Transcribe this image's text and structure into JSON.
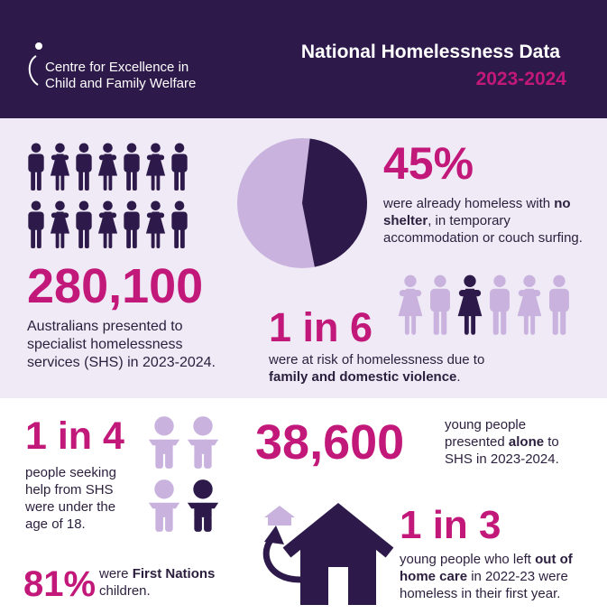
{
  "header": {
    "logo_text": [
      "Centre for Excellence in",
      "Child and Family Welfare"
    ],
    "title": "National Homelessness Data",
    "subtitle": "2023-2024"
  },
  "stats": [
    {
      "figure": "280,100",
      "description": [
        {
          "text": "Australians presented to specialist homelessness services (SHS) in 2023-2024."
        }
      ]
    },
    {
      "figure": {
        "value": 45,
        "label": "45%"
      },
      "description": [
        {
          "text": "were already homeless with "
        },
        {
          "text": "no shelter",
          "bold": true
        },
        {
          "text": ", in temporary accommodation or couch surfing."
        }
      ]
    },
    {
      "figure": "1 in 6",
      "description": [
        {
          "text": "were at risk of homelessness due to "
        },
        {
          "text": "family and domestic violence",
          "bold": true
        },
        {
          "text": "."
        }
      ]
    },
    {
      "figure": "1 in 4",
      "description": [
        {
          "text": "people seeking help from SHS were under the age of 18."
        }
      ]
    },
    {
      "figure": "81%",
      "description": [
        {
          "text": "were "
        },
        {
          "text": "First Nations",
          "bold": true
        },
        {
          "text": " children."
        }
      ]
    },
    {
      "figure": "38,600",
      "description": [
        {
          "text": "young people presented "
        },
        {
          "text": "alone",
          "bold": true
        },
        {
          "text": " to SHS in 2023-2024."
        }
      ]
    },
    {
      "figure": "1 in 3",
      "description": [
        {
          "text": "young people who left "
        },
        {
          "text": "out of home care",
          "bold": true
        },
        {
          "text": " in 2022-23 were homeless in their first year."
        }
      ]
    }
  ]
}
